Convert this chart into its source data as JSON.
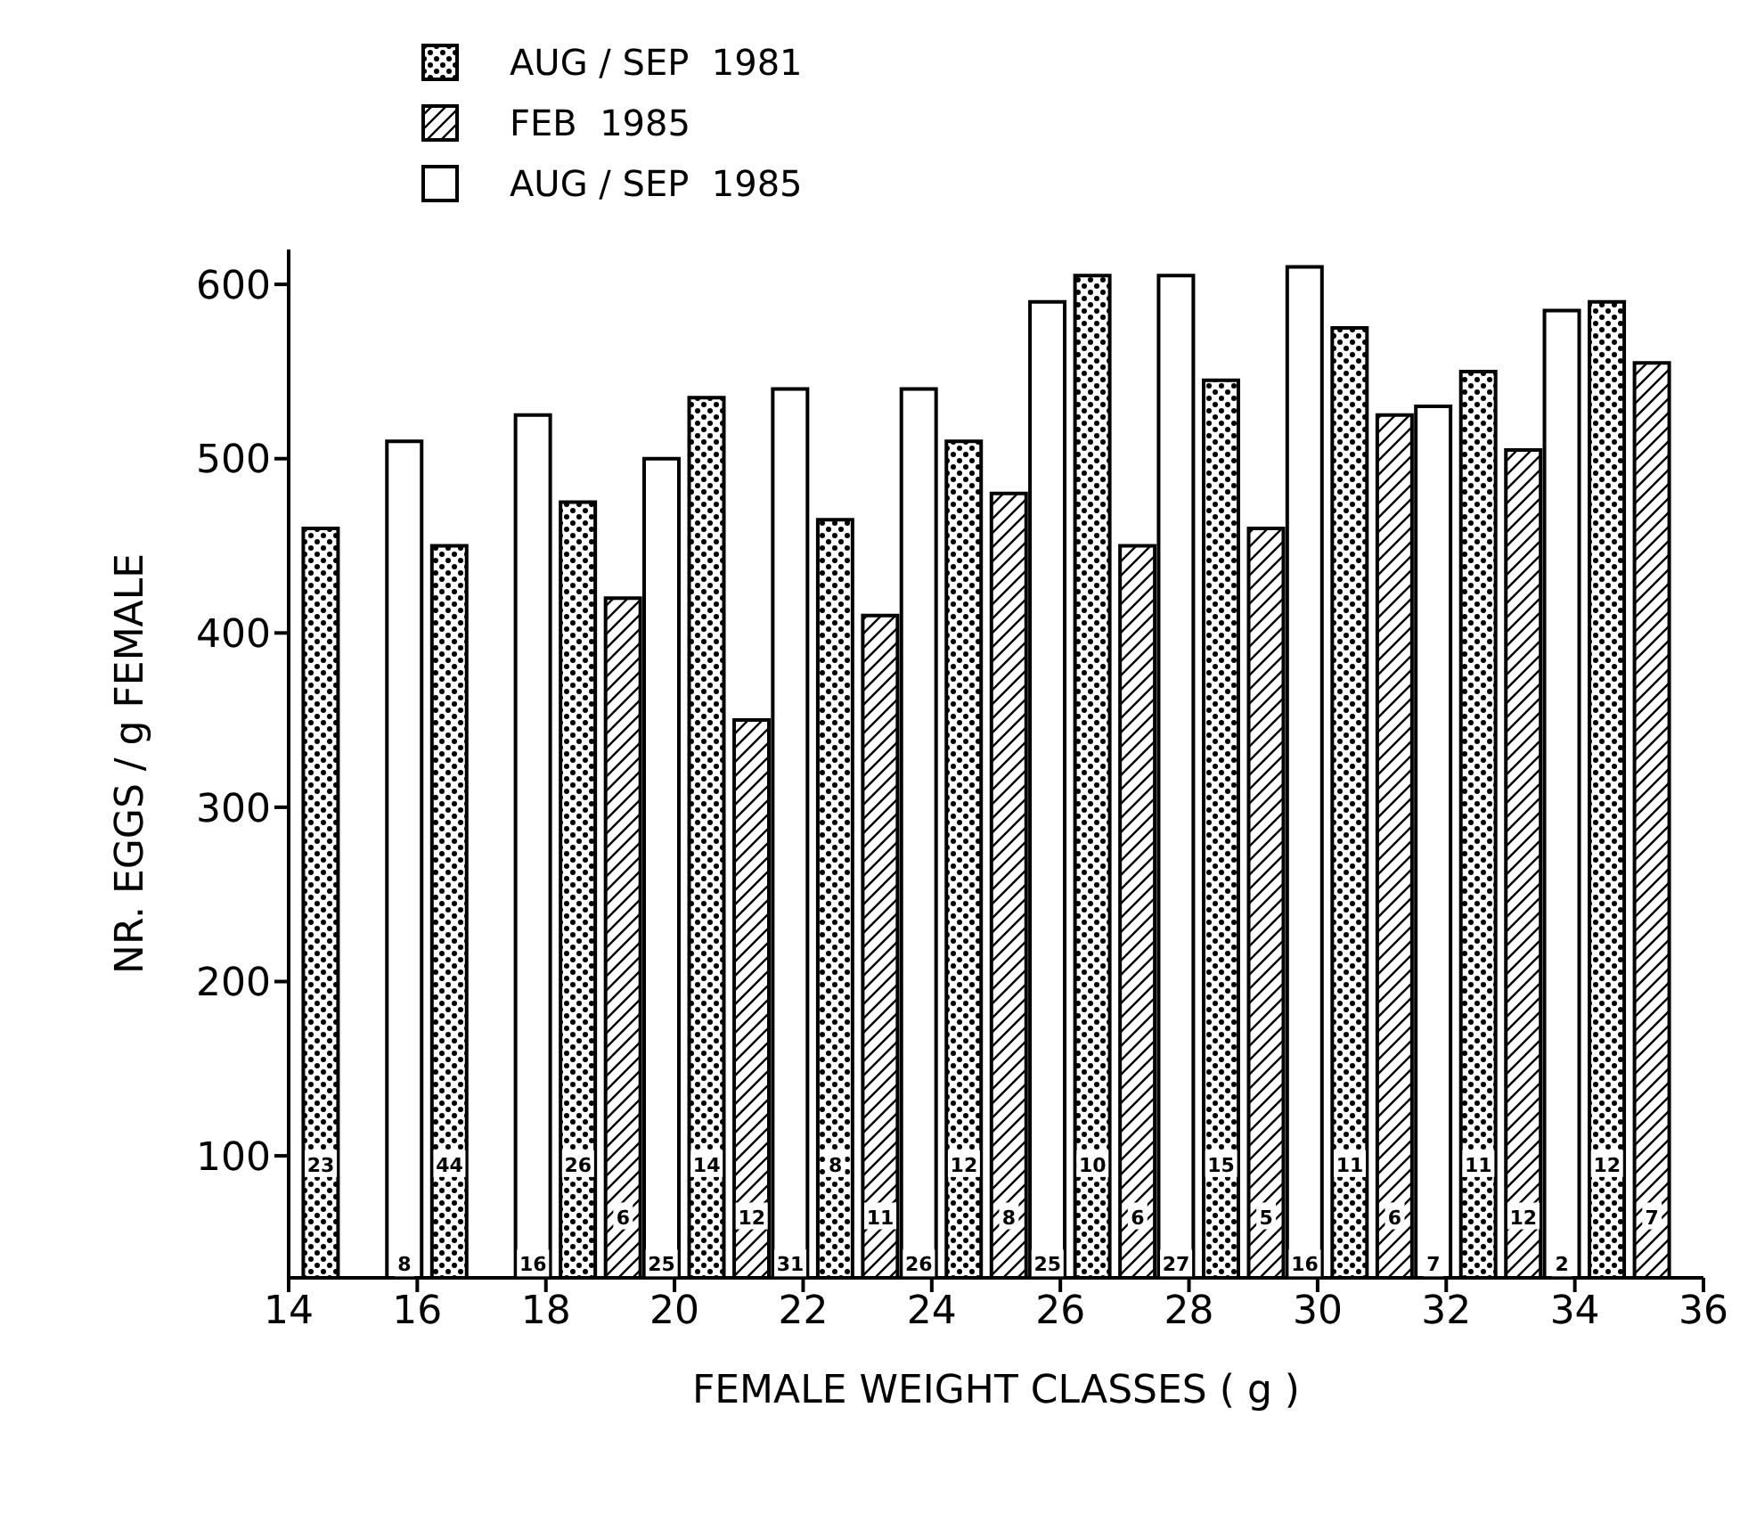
{
  "chart_data": {
    "type": "bar",
    "xlabel": "FEMALE  WEIGHT CLASSES ( g )",
    "ylabel": "NR. EGGS / g  FEMALE",
    "xlim": [
      14,
      36
    ],
    "xticks": [
      14,
      16,
      18,
      20,
      22,
      24,
      26,
      28,
      30,
      32,
      34,
      36
    ],
    "ylim": [
      30,
      620
    ],
    "yticks": [
      100,
      200,
      300,
      400,
      500,
      600
    ],
    "legend": "top left",
    "series": [
      {
        "name": "AUG / SEP  1981",
        "color": "#000000",
        "x": [
          14.5,
          16.5,
          18.5,
          20.5,
          22.5,
          24.5,
          26.5,
          28.5,
          30.5,
          32.5,
          34.5
        ],
        "values": [
          460,
          450,
          475,
          535,
          465,
          510,
          605,
          545,
          575,
          550,
          590
        ]
      },
      {
        "name": "FEB  1985",
        "color": "#000000",
        "x": [
          19.2,
          21.2,
          23.2,
          25.2,
          27.2,
          29.2,
          31.2,
          33.2,
          35.2
        ],
        "values": [
          420,
          350,
          410,
          480,
          450,
          460,
          525,
          505,
          555
        ]
      },
      {
        "name": "AUG / SEP  1985",
        "color": "#ffffff",
        "x": [
          15.8,
          17.8,
          19.8,
          21.8,
          23.8,
          25.8,
          27.8,
          29.8,
          31.8,
          33.8
        ],
        "values": [
          510,
          525,
          500,
          540,
          540,
          590,
          605,
          610,
          530,
          585
        ]
      }
    ],
    "annotations": [
      {
        "text": "23",
        "x": 14.5,
        "y": 95
      },
      {
        "text": "44",
        "x": 16.5,
        "y": 95
      },
      {
        "text": "26",
        "x": 18.5,
        "y": 95
      },
      {
        "text": "14",
        "x": 20.5,
        "y": 95
      },
      {
        "text": "8",
        "x": 22.5,
        "y": 95
      },
      {
        "text": "12",
        "x": 24.5,
        "y": 95
      },
      {
        "text": "10",
        "x": 26.5,
        "y": 95
      },
      {
        "text": "15",
        "x": 28.5,
        "y": 95
      },
      {
        "text": "11",
        "x": 30.5,
        "y": 95
      },
      {
        "text": "11",
        "x": 32.5,
        "y": 95
      },
      {
        "text": "12",
        "x": 34.5,
        "y": 95
      },
      {
        "text": "6",
        "x": 19.2,
        "y": 65
      },
      {
        "text": "12",
        "x": 21.2,
        "y": 65
      },
      {
        "text": "11",
        "x": 23.2,
        "y": 65
      },
      {
        "text": "8",
        "x": 25.2,
        "y": 65
      },
      {
        "text": "6",
        "x": 27.2,
        "y": 65
      },
      {
        "text": "5",
        "x": 29.2,
        "y": 65
      },
      {
        "text": "6",
        "x": 31.2,
        "y": 65
      },
      {
        "text": "12",
        "x": 33.2,
        "y": 65
      },
      {
        "text": "7",
        "x": 35.2,
        "y": 65
      },
      {
        "text": "8",
        "x": 15.8,
        "y": 38
      },
      {
        "text": "16",
        "x": 17.8,
        "y": 38
      },
      {
        "text": "25",
        "x": 19.8,
        "y": 38
      },
      {
        "text": "31",
        "x": 21.8,
        "y": 38
      },
      {
        "text": "26",
        "x": 23.8,
        "y": 38
      },
      {
        "text": "25",
        "x": 25.8,
        "y": 38
      },
      {
        "text": "27",
        "x": 27.8,
        "y": 38
      },
      {
        "text": "16",
        "x": 29.8,
        "y": 38
      },
      {
        "text": "7",
        "x": 31.8,
        "y": 38
      },
      {
        "text": "2",
        "x": 33.8,
        "y": 38
      }
    ]
  }
}
